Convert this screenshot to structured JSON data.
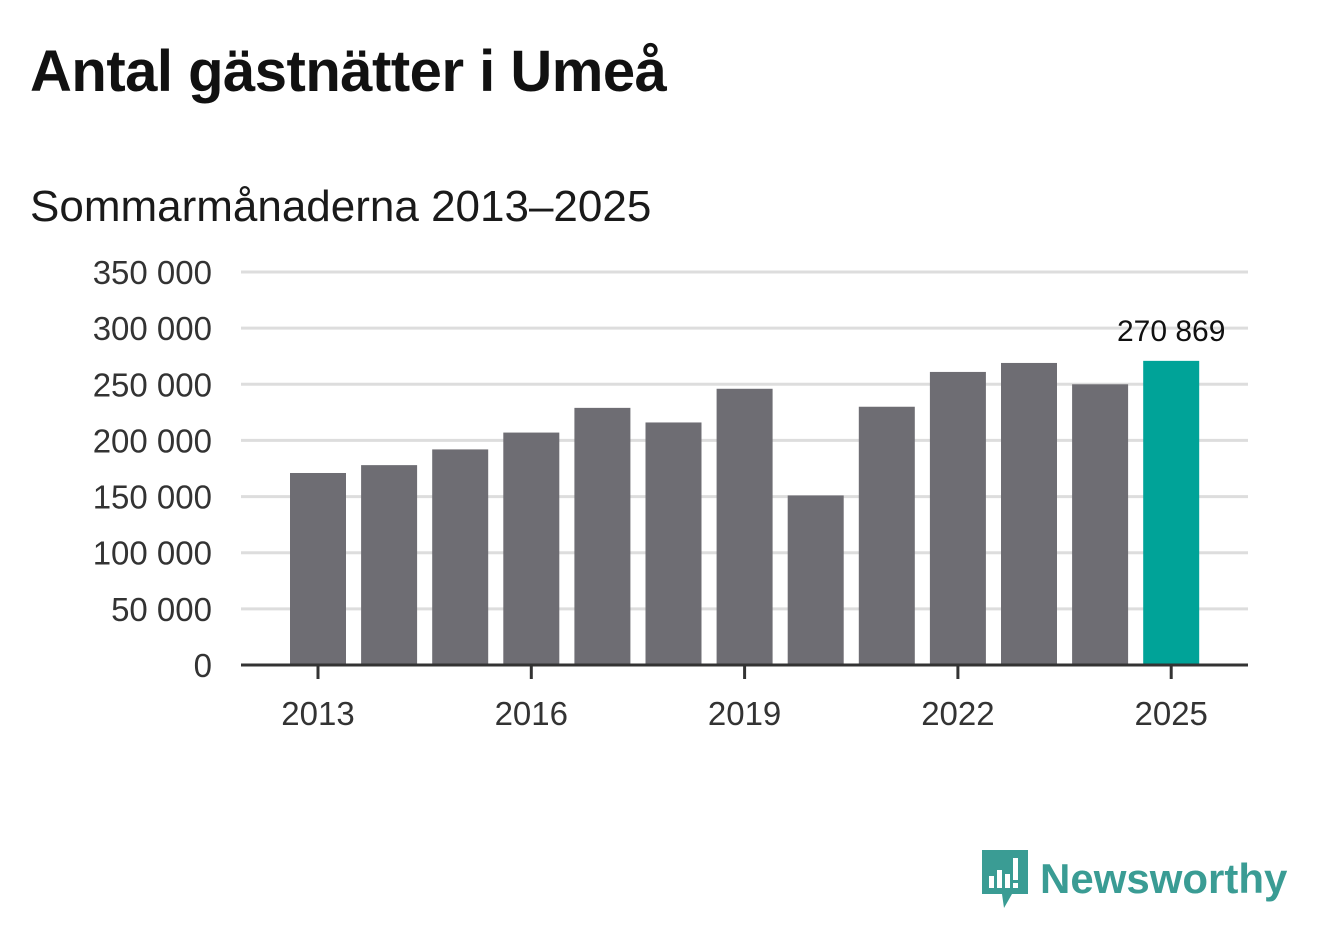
{
  "title": "Antal gästnätter i Umeå",
  "subtitle": "Sommarmånaderna 2013–2025",
  "brand": {
    "name": "Newsworthy",
    "color": "#3a9c94",
    "icon": "newsworthy-logo-icon"
  },
  "colors": {
    "bar": "#6e6d73",
    "highlight": "#00a398",
    "grid": "#dddddd",
    "axis": "#333333"
  },
  "chart_data": {
    "type": "bar",
    "title": "Antal gästnätter i Umeå",
    "subtitle": "Sommarmånaderna 2013–2025",
    "categories": [
      "2013",
      "2014",
      "2015",
      "2016",
      "2017",
      "2018",
      "2019",
      "2020",
      "2021",
      "2022",
      "2023",
      "2024",
      "2025"
    ],
    "values": [
      171000,
      178000,
      192000,
      207000,
      229000,
      216000,
      246000,
      151000,
      230000,
      261000,
      269000,
      250000,
      270869
    ],
    "highlight_index": 12,
    "data_labels": [
      {
        "index": 12,
        "text": "270 869"
      }
    ],
    "ylim": [
      0,
      350000
    ],
    "yticks": [
      0,
      50000,
      100000,
      150000,
      200000,
      250000,
      300000,
      350000
    ],
    "ytick_labels": [
      "0",
      "50 000",
      "100 000",
      "150 000",
      "200 000",
      "250 000",
      "300 000",
      "350 000"
    ],
    "xticks": [
      "2013",
      "2016",
      "2019",
      "2022",
      "2025"
    ],
    "xlabel": "",
    "ylabel": "",
    "grid": true,
    "legend": "none"
  }
}
